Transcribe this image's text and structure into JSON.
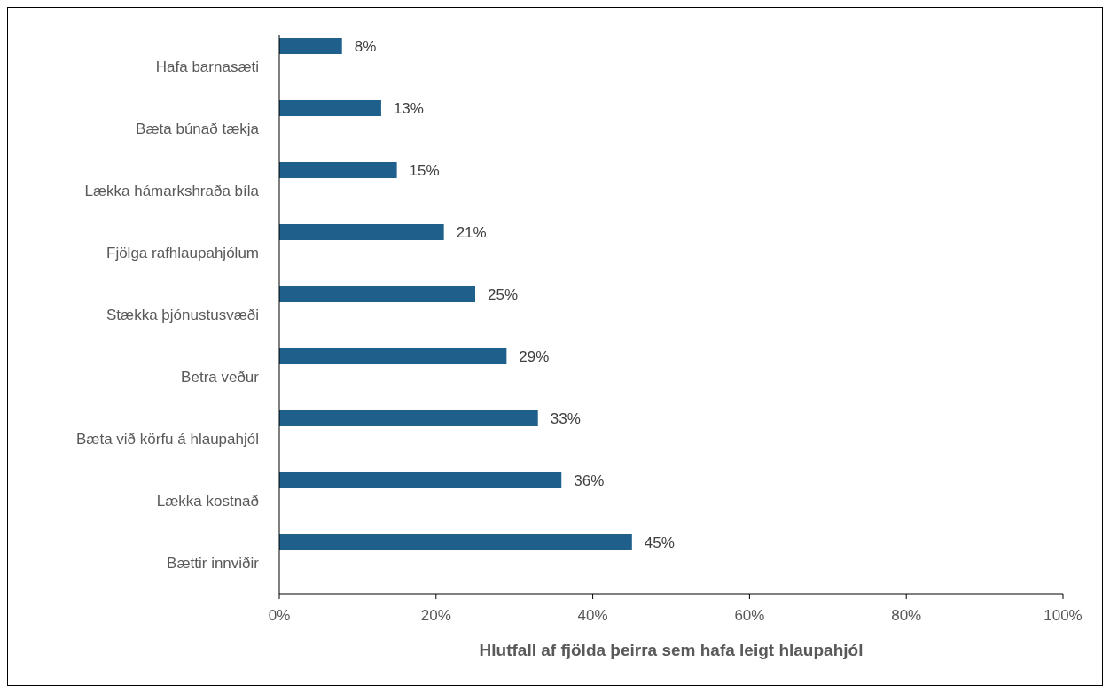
{
  "chart_data": {
    "type": "bar",
    "orientation": "horizontal",
    "xlabel": "Hlutfall af fjölda þeirra sem hafa leigt hlaupahjól",
    "categories": [
      "Hafa barnasæti",
      "Bæta búnað tækja",
      "Lækka hámarkshraða bíla",
      "Fjölga rafhlaupahjólum",
      "Stækka þjónustusvæði",
      "Betra veður",
      "Bæta við körfu á hlaupahjól",
      "Lækka kostnað",
      "Bættir innviðir"
    ],
    "values": [
      8,
      13,
      15,
      21,
      25,
      29,
      33,
      36,
      45
    ],
    "value_labels": [
      "8%",
      "13%",
      "15%",
      "21%",
      "25%",
      "29%",
      "33%",
      "36%",
      "45%"
    ],
    "color": "#1f5f8b",
    "xlim": [
      0,
      100
    ],
    "xticks": [
      {
        "value": 0,
        "label": "0%"
      },
      {
        "value": 20,
        "label": "20%"
      },
      {
        "value": 40,
        "label": "40%"
      },
      {
        "value": 60,
        "label": "60%"
      },
      {
        "value": 80,
        "label": "80%"
      },
      {
        "value": 100,
        "label": "100%"
      }
    ],
    "grid": false
  }
}
